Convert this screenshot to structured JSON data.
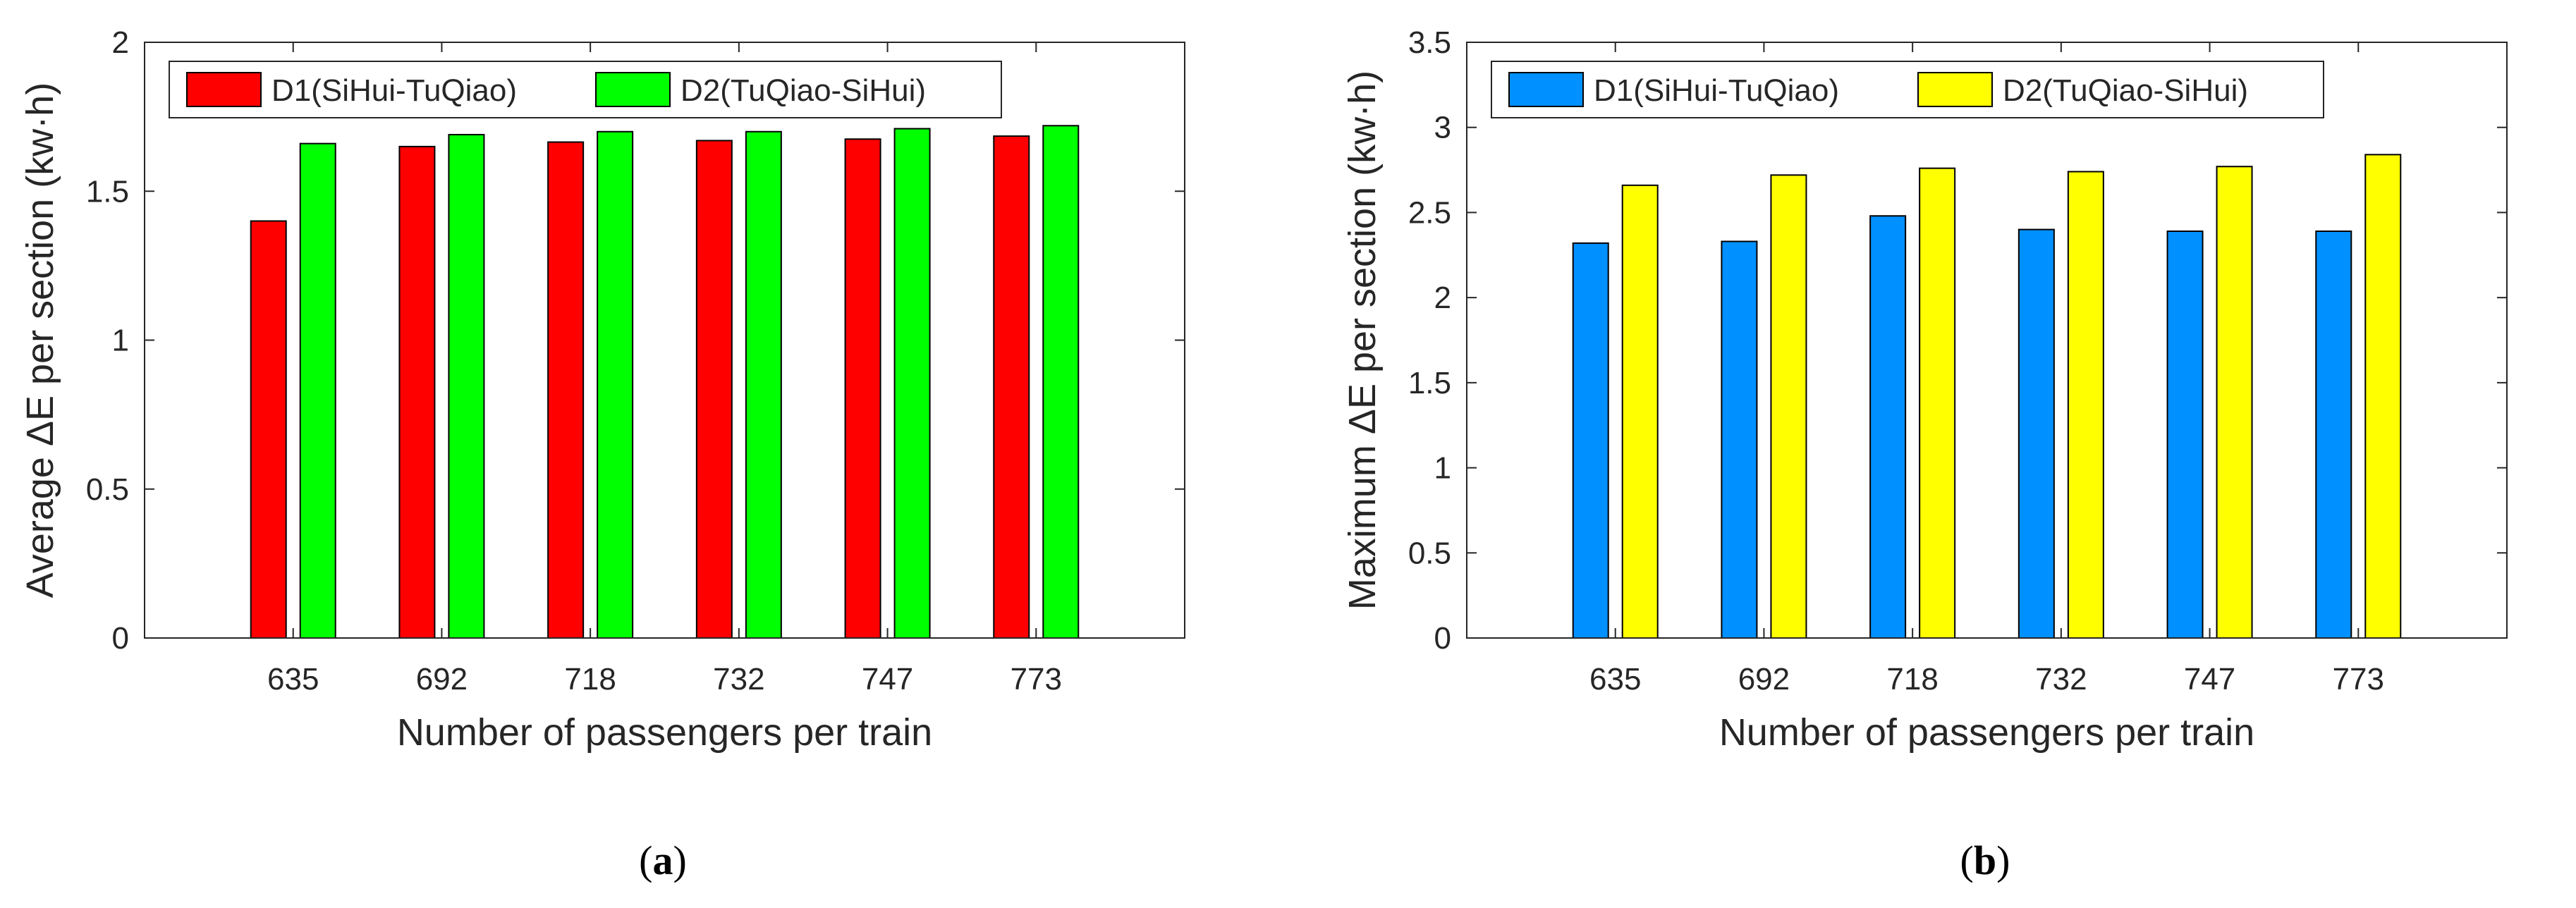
{
  "chart_data": [
    {
      "type": "bar",
      "panel_caption": {
        "open": "(",
        "letter": "a",
        "close": ")"
      },
      "xlabel": "Number of passengers per train",
      "ylabel": "Average ΔE per section (kw·h)",
      "categories": [
        "635",
        "692",
        "718",
        "732",
        "747",
        "773"
      ],
      "ylim": [
        0,
        2
      ],
      "yticks": [
        "0",
        "0.5",
        "1",
        "1.5",
        "2"
      ],
      "yticks_values": [
        0,
        0.5,
        1,
        1.5,
        2
      ],
      "legend_position": "top-left",
      "series": [
        {
          "name": "D1(SiHui-TuQiao)",
          "color": "#ff0000",
          "values": [
            1.4,
            1.65,
            1.665,
            1.67,
            1.675,
            1.685
          ]
        },
        {
          "name": "D2(TuQiao-SiHui)",
          "color": "#00ff00",
          "values": [
            1.66,
            1.69,
            1.7,
            1.7,
            1.71,
            1.72
          ]
        }
      ]
    },
    {
      "type": "bar",
      "panel_caption": {
        "open": "(",
        "letter": "b",
        "close": ")"
      },
      "xlabel": "Number of passengers per train",
      "ylabel": "Maximum ΔE per section (kw·h)",
      "categories": [
        "635",
        "692",
        "718",
        "732",
        "747",
        "773"
      ],
      "ylim": [
        0,
        3.5
      ],
      "yticks": [
        "0",
        "0.5",
        "1",
        "1.5",
        "2",
        "2.5",
        "3",
        "3.5"
      ],
      "yticks_values": [
        0,
        0.5,
        1,
        1.5,
        2,
        2.5,
        3,
        3.5
      ],
      "legend_position": "top-left",
      "series": [
        {
          "name": "D1(SiHui-TuQiao)",
          "color": "#0090ff",
          "values": [
            2.32,
            2.33,
            2.48,
            2.4,
            2.39,
            2.39
          ]
        },
        {
          "name": "D2(TuQiao-SiHui)",
          "color": "#ffff00",
          "values": [
            2.66,
            2.72,
            2.76,
            2.74,
            2.77,
            2.84
          ]
        }
      ]
    }
  ]
}
